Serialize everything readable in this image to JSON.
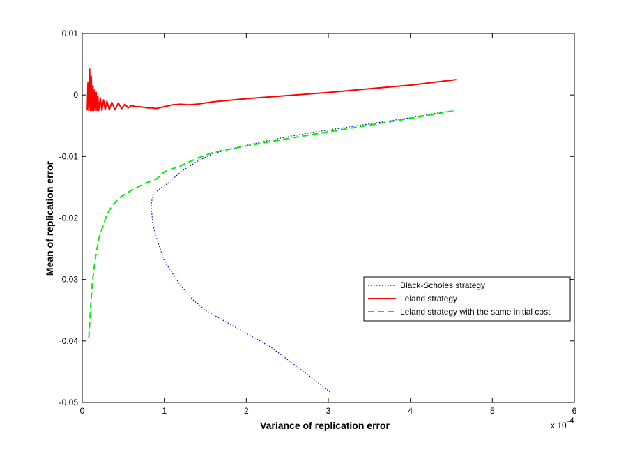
{
  "chart_data": {
    "type": "line",
    "xlabel": "Variance of replication error",
    "ylabel": "Mean of replication error",
    "x_exponent_label": "x 10",
    "x_exponent_power": "-4",
    "x_scale_factor": 0.0001,
    "xlim": [
      0,
      6
    ],
    "ylim": [
      -0.05,
      0.01
    ],
    "xticks": [
      0,
      1,
      2,
      3,
      4,
      5,
      6
    ],
    "xtick_labels": [
      "0",
      "1",
      "2",
      "3",
      "4",
      "5",
      "6"
    ],
    "yticks": [
      -0.05,
      -0.04,
      -0.03,
      -0.02,
      -0.01,
      0,
      0.01
    ],
    "ytick_labels": [
      "-0.05",
      "-0.04",
      "-0.03",
      "-0.02",
      "-0.01",
      "0",
      "0.01"
    ],
    "grid": false,
    "legend_position": "lower-right",
    "series": [
      {
        "name": "Black-Scholes strategy",
        "color": "#0000cc",
        "style": "dotted",
        "x": [
          3.02,
          2.75,
          2.5,
          2.3,
          2.1,
          1.9,
          1.7,
          1.5,
          1.35,
          1.2,
          1.1,
          1.0,
          0.95,
          0.9,
          0.86,
          0.85,
          0.84,
          0.85,
          0.88,
          0.95,
          1.05,
          1.2,
          1.4,
          1.6,
          1.9,
          2.2,
          2.5,
          2.8,
          3.1,
          3.4,
          3.7,
          4.0,
          4.3,
          4.56
        ],
        "y": [
          -0.0483,
          -0.0455,
          -0.043,
          -0.041,
          -0.0395,
          -0.038,
          -0.0365,
          -0.035,
          -0.0333,
          -0.031,
          -0.029,
          -0.027,
          -0.025,
          -0.023,
          -0.021,
          -0.0195,
          -0.0183,
          -0.017,
          -0.016,
          -0.0152,
          -0.0143,
          -0.0125,
          -0.0108,
          -0.0095,
          -0.0085,
          -0.0076,
          -0.0068,
          -0.0061,
          -0.0055,
          -0.0049,
          -0.0043,
          -0.0037,
          -0.003,
          -0.0025
        ]
      },
      {
        "name": "Leland strategy",
        "color": "#ff0000",
        "style": "solid",
        "x": [
          0.06,
          0.07,
          0.08,
          0.09,
          0.1,
          0.11,
          0.12,
          0.13,
          0.14,
          0.15,
          0.16,
          0.17,
          0.18,
          0.19,
          0.2,
          0.22,
          0.24,
          0.26,
          0.28,
          0.3,
          0.33,
          0.36,
          0.4,
          0.44,
          0.48,
          0.52,
          0.56,
          0.6,
          0.65,
          0.7,
          0.75,
          0.8,
          0.85,
          0.9,
          1.0,
          1.1,
          1.2,
          1.3,
          1.4,
          1.6,
          2.0,
          2.5,
          3.0,
          3.5,
          4.0,
          4.56
        ],
        "y": [
          -0.0025,
          0.002,
          -0.0025,
          0.0042,
          -0.0025,
          0.003,
          -0.0025,
          0.0015,
          -0.0025,
          0.0008,
          -0.0025,
          0.0004,
          -0.0025,
          -0.0002,
          -0.0025,
          -0.0005,
          -0.0025,
          -0.0008,
          -0.0024,
          -0.001,
          -0.0024,
          -0.0012,
          -0.0024,
          -0.0013,
          -0.0022,
          -0.0015,
          -0.0021,
          -0.0017,
          -0.0019,
          -0.0019,
          -0.002,
          -0.0021,
          -0.0021,
          -0.0022,
          -0.0019,
          -0.0016,
          -0.0015,
          -0.0016,
          -0.0015,
          -0.0011,
          -0.0006,
          -0.0001,
          0.0004,
          0.001,
          0.0016,
          0.0025
        ]
      },
      {
        "name": "Leland strategy with the same initial cost",
        "color": "#00ee00",
        "style": "dashed",
        "x": [
          0.08,
          0.1,
          0.12,
          0.14,
          0.16,
          0.18,
          0.2,
          0.23,
          0.26,
          0.3,
          0.35,
          0.4,
          0.45,
          0.5,
          0.6,
          0.7,
          0.8,
          0.9,
          1.0,
          1.2,
          1.4,
          1.6,
          2.0,
          2.5,
          3.0,
          3.5,
          4.0,
          4.56
        ],
        "y": [
          -0.0395,
          -0.035,
          -0.031,
          -0.0285,
          -0.0265,
          -0.025,
          -0.0235,
          -0.0222,
          -0.021,
          -0.0195,
          -0.0183,
          -0.0175,
          -0.0168,
          -0.0163,
          -0.0155,
          -0.0148,
          -0.0142,
          -0.0137,
          -0.0125,
          -0.0115,
          -0.0103,
          -0.0093,
          -0.0083,
          -0.0071,
          -0.006,
          -0.0049,
          -0.0038,
          -0.0025
        ]
      }
    ]
  }
}
